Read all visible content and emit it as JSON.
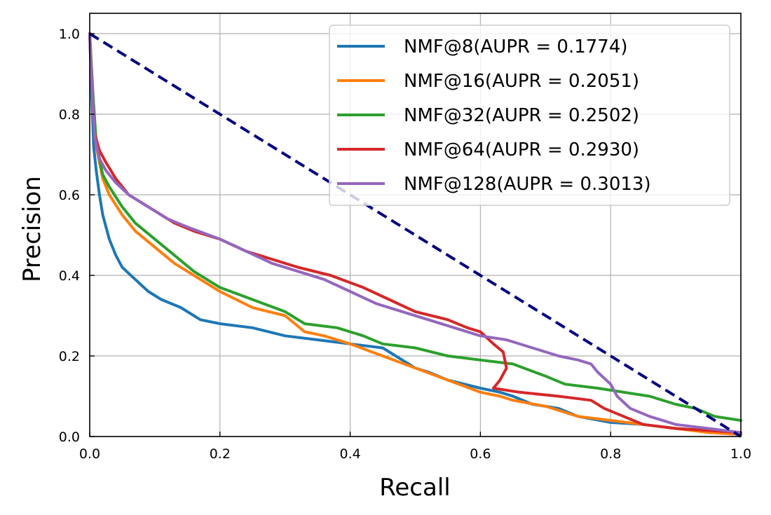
{
  "chart_data": {
    "type": "line",
    "title": "",
    "xlabel": "Recall",
    "ylabel": "Precision",
    "xlim": [
      0.0,
      1.0
    ],
    "ylim": [
      0.0,
      1.05
    ],
    "xticks": [
      "0.0",
      "0.2",
      "0.4",
      "0.6",
      "0.8",
      "1.0"
    ],
    "yticks": [
      "0.0",
      "0.2",
      "0.4",
      "0.6",
      "0.8",
      "1.0"
    ],
    "grid": true,
    "legend_position": "top-right",
    "reference_line": {
      "style": "dashed",
      "color": "#000080",
      "points": [
        [
          0.0,
          1.0
        ],
        [
          1.0,
          0.0
        ]
      ]
    },
    "series": [
      {
        "name": "NMF@8(AUPR = 0.1774)",
        "color": "#1f77b4",
        "points": [
          [
            0.0,
            1.0
          ],
          [
            0.003,
            0.85
          ],
          [
            0.006,
            0.72
          ],
          [
            0.01,
            0.66
          ],
          [
            0.015,
            0.6
          ],
          [
            0.02,
            0.55
          ],
          [
            0.03,
            0.49
          ],
          [
            0.04,
            0.45
          ],
          [
            0.05,
            0.42
          ],
          [
            0.07,
            0.39
          ],
          [
            0.09,
            0.36
          ],
          [
            0.11,
            0.34
          ],
          [
            0.14,
            0.32
          ],
          [
            0.17,
            0.29
          ],
          [
            0.2,
            0.28
          ],
          [
            0.25,
            0.27
          ],
          [
            0.3,
            0.25
          ],
          [
            0.35,
            0.24
          ],
          [
            0.4,
            0.23
          ],
          [
            0.45,
            0.22
          ],
          [
            0.5,
            0.17
          ],
          [
            0.52,
            0.16
          ],
          [
            0.55,
            0.14
          ],
          [
            0.6,
            0.12
          ],
          [
            0.63,
            0.11
          ],
          [
            0.65,
            0.1
          ],
          [
            0.68,
            0.08
          ],
          [
            0.7,
            0.075
          ],
          [
            0.72,
            0.07
          ],
          [
            0.75,
            0.05
          ],
          [
            0.8,
            0.035
          ],
          [
            0.85,
            0.03
          ],
          [
            0.9,
            0.02
          ],
          [
            0.95,
            0.015
          ],
          [
            1.0,
            0.01
          ]
        ]
      },
      {
        "name": "NMF@16(AUPR = 0.2051)",
        "color": "#ff7f0e",
        "points": [
          [
            0.0,
            1.0
          ],
          [
            0.005,
            0.85
          ],
          [
            0.01,
            0.72
          ],
          [
            0.02,
            0.64
          ],
          [
            0.03,
            0.6
          ],
          [
            0.05,
            0.55
          ],
          [
            0.07,
            0.51
          ],
          [
            0.1,
            0.47
          ],
          [
            0.13,
            0.43
          ],
          [
            0.16,
            0.4
          ],
          [
            0.2,
            0.36
          ],
          [
            0.25,
            0.32
          ],
          [
            0.3,
            0.3
          ],
          [
            0.33,
            0.26
          ],
          [
            0.36,
            0.25
          ],
          [
            0.4,
            0.23
          ],
          [
            0.45,
            0.2
          ],
          [
            0.5,
            0.17
          ],
          [
            0.55,
            0.14
          ],
          [
            0.6,
            0.11
          ],
          [
            0.63,
            0.1
          ],
          [
            0.65,
            0.09
          ],
          [
            0.7,
            0.075
          ],
          [
            0.72,
            0.065
          ],
          [
            0.75,
            0.05
          ],
          [
            0.8,
            0.04
          ],
          [
            0.85,
            0.03
          ],
          [
            0.9,
            0.02
          ],
          [
            0.95,
            0.01
          ],
          [
            1.0,
            0.005
          ]
        ]
      },
      {
        "name": "NMF@32(AUPR = 0.2502)",
        "color": "#2ca02c",
        "points": [
          [
            0.0,
            1.0
          ],
          [
            0.005,
            0.85
          ],
          [
            0.01,
            0.73
          ],
          [
            0.02,
            0.65
          ],
          [
            0.03,
            0.62
          ],
          [
            0.05,
            0.57
          ],
          [
            0.07,
            0.53
          ],
          [
            0.1,
            0.49
          ],
          [
            0.13,
            0.45
          ],
          [
            0.16,
            0.41
          ],
          [
            0.2,
            0.37
          ],
          [
            0.25,
            0.34
          ],
          [
            0.3,
            0.31
          ],
          [
            0.33,
            0.28
          ],
          [
            0.38,
            0.27
          ],
          [
            0.42,
            0.25
          ],
          [
            0.45,
            0.23
          ],
          [
            0.5,
            0.22
          ],
          [
            0.55,
            0.2
          ],
          [
            0.6,
            0.19
          ],
          [
            0.65,
            0.18
          ],
          [
            0.7,
            0.15
          ],
          [
            0.73,
            0.13
          ],
          [
            0.78,
            0.12
          ],
          [
            0.82,
            0.11
          ],
          [
            0.86,
            0.1
          ],
          [
            0.9,
            0.08
          ],
          [
            0.93,
            0.07
          ],
          [
            0.96,
            0.05
          ],
          [
            1.0,
            0.04
          ]
        ]
      },
      {
        "name": "NMF@64(AUPR = 0.2930)",
        "color": "#d62728",
        "points": [
          [
            0.0,
            1.0
          ],
          [
            0.004,
            0.85
          ],
          [
            0.008,
            0.75
          ],
          [
            0.015,
            0.71
          ],
          [
            0.025,
            0.68
          ],
          [
            0.04,
            0.64
          ],
          [
            0.06,
            0.6
          ],
          [
            0.1,
            0.56
          ],
          [
            0.13,
            0.53
          ],
          [
            0.16,
            0.51
          ],
          [
            0.2,
            0.49
          ],
          [
            0.24,
            0.46
          ],
          [
            0.28,
            0.44
          ],
          [
            0.32,
            0.42
          ],
          [
            0.37,
            0.4
          ],
          [
            0.42,
            0.37
          ],
          [
            0.46,
            0.34
          ],
          [
            0.5,
            0.31
          ],
          [
            0.55,
            0.29
          ],
          [
            0.58,
            0.27
          ],
          [
            0.6,
            0.26
          ],
          [
            0.62,
            0.23
          ],
          [
            0.635,
            0.21
          ],
          [
            0.64,
            0.17
          ],
          [
            0.63,
            0.14
          ],
          [
            0.62,
            0.12
          ],
          [
            0.66,
            0.11
          ],
          [
            0.72,
            0.1
          ],
          [
            0.77,
            0.09
          ],
          [
            0.79,
            0.07
          ],
          [
            0.82,
            0.05
          ],
          [
            0.85,
            0.03
          ],
          [
            0.9,
            0.02
          ],
          [
            0.95,
            0.015
          ],
          [
            1.0,
            0.01
          ]
        ]
      },
      {
        "name": "NMF@128(AUPR = 0.3013)",
        "color": "#9467bd",
        "points": [
          [
            0.0,
            1.0
          ],
          [
            0.004,
            0.85
          ],
          [
            0.008,
            0.74
          ],
          [
            0.015,
            0.69
          ],
          [
            0.025,
            0.66
          ],
          [
            0.04,
            0.63
          ],
          [
            0.06,
            0.6
          ],
          [
            0.09,
            0.57
          ],
          [
            0.12,
            0.54
          ],
          [
            0.15,
            0.52
          ],
          [
            0.2,
            0.49
          ],
          [
            0.24,
            0.46
          ],
          [
            0.28,
            0.43
          ],
          [
            0.32,
            0.41
          ],
          [
            0.36,
            0.39
          ],
          [
            0.4,
            0.36
          ],
          [
            0.44,
            0.33
          ],
          [
            0.48,
            0.31
          ],
          [
            0.52,
            0.29
          ],
          [
            0.56,
            0.27
          ],
          [
            0.6,
            0.25
          ],
          [
            0.64,
            0.24
          ],
          [
            0.68,
            0.22
          ],
          [
            0.72,
            0.2
          ],
          [
            0.75,
            0.19
          ],
          [
            0.77,
            0.18
          ],
          [
            0.78,
            0.16
          ],
          [
            0.8,
            0.13
          ],
          [
            0.81,
            0.1
          ],
          [
            0.83,
            0.07
          ],
          [
            0.86,
            0.05
          ],
          [
            0.9,
            0.03
          ],
          [
            0.95,
            0.02
          ],
          [
            1.0,
            0.01
          ]
        ]
      }
    ]
  }
}
